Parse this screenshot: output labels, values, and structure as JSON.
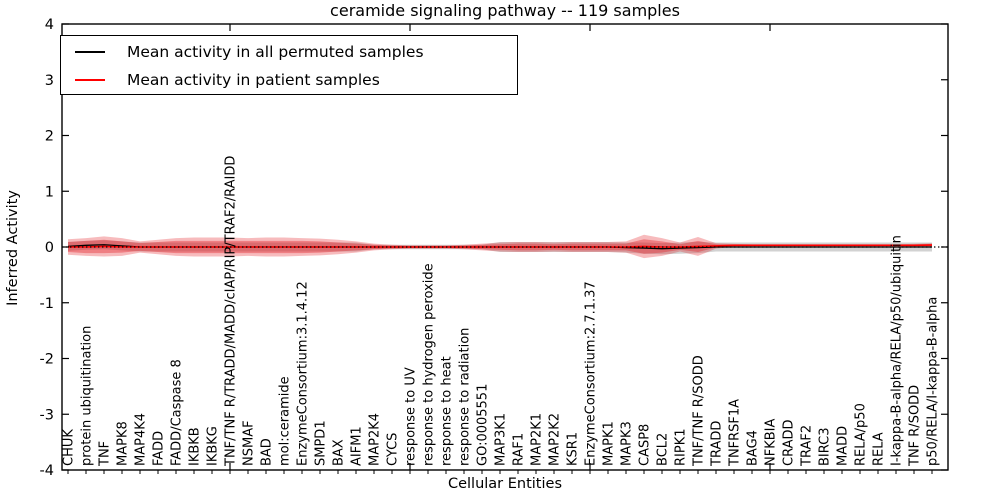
{
  "figure": {
    "title": "ceramide signaling pathway -- 119 samples",
    "xlabel": "Cellular Entities",
    "ylabel": "Inferred Activity"
  },
  "legend": {
    "entries": [
      {
        "label": "Mean activity in all permuted samples",
        "color": "#000000"
      },
      {
        "label": "Mean activity in patient samples",
        "color": "#ff0000"
      }
    ],
    "position": "upper left"
  },
  "chart_data": {
    "type": "line",
    "title": "ceramide signaling pathway -- 119 samples",
    "xlabel": "Cellular Entities",
    "ylabel": "Inferred Activity",
    "ylim": [
      -4,
      4
    ],
    "yticks": [
      4,
      3,
      2,
      1,
      0,
      -1,
      -2,
      -3,
      -4
    ],
    "x_major_tick_indices": [
      9,
      19,
      29,
      39
    ],
    "grid": false,
    "legend_position": "upper left",
    "zero_line": 0,
    "categories": [
      "CHUK",
      "protein ubiquitination",
      "TNF",
      "MAPK8",
      "MAP4K4",
      "FADD",
      "FADD/Caspase 8",
      "IKBKB",
      "IKBKG",
      "TNF/TNF R/TRADD/MADD/cIAP/RIP/TRAF2/RAIDD",
      "NSMAF",
      "BAD",
      "mol:ceramide",
      "EnzymeConsortium:3.1.4.12",
      "SMPD1",
      "BAX",
      "AIFM1",
      "MAP2K4",
      "CYCS",
      "response to UV",
      "response to hydrogen peroxide",
      "response to heat",
      "response to radiation",
      "GO:0005551",
      "MAP3K1",
      "RAF1",
      "MAP2K1",
      "MAP2K2",
      "KSR1",
      "EnzymeConsortium:2.7.1.37",
      "MAPK1",
      "MAPK3",
      "CASP8",
      "BCL2",
      "RIPK1",
      "TNF/TNF R/SODD",
      "TRADD",
      "TNFRSF1A",
      "BAG4",
      "NFKBIA",
      "CRADD",
      "TRAF2",
      "BIRC3",
      "MADD",
      "RELA/p50",
      "RELA",
      "I-kappa-B-alpha/RELA/p50/ubiquitin",
      "TNF R/SODD",
      "p50/RELA/I-kappa-B-alpha"
    ],
    "series": [
      {
        "name": "Mean activity in all permuted samples",
        "color": "#000000",
        "width": 1.3,
        "values": [
          0.01,
          0.03,
          0.04,
          0.02,
          0,
          0,
          0,
          0,
          0,
          0,
          0,
          0,
          0,
          0,
          0,
          0,
          0,
          0,
          0,
          0,
          0,
          0,
          0,
          0,
          0,
          0,
          0,
          0,
          0,
          0,
          0,
          -0.01,
          -0.02,
          -0.03,
          -0.02,
          -0.01,
          0,
          0,
          0,
          0,
          0,
          0,
          0,
          0,
          0,
          0,
          0,
          0,
          0
        ]
      },
      {
        "name": "Mean activity in patient samples",
        "color": "#ff0000",
        "width": 1.6,
        "values": [
          0,
          0,
          0.01,
          0,
          0,
          0,
          0,
          0,
          0,
          0,
          0,
          0,
          0,
          0,
          0,
          0,
          0,
          0,
          0,
          0,
          0,
          0,
          0,
          0,
          0,
          0,
          0,
          0,
          0,
          0,
          0,
          0,
          0.01,
          0,
          0,
          0.01,
          0.02,
          0.03,
          0.03,
          0.03,
          0.03,
          0.03,
          0.03,
          0.03,
          0.03,
          0.03,
          0.03,
          0.03,
          0.035
        ]
      }
    ],
    "bands": [
      {
        "name": "permuted-range-band",
        "color": "rgba(125,125,125,0.35)",
        "center_series": 0,
        "half_widths": [
          0.08,
          0.08,
          0.08,
          0.08,
          0.08,
          0.08,
          0.08,
          0.08,
          0.08,
          0.08,
          0.08,
          0.08,
          0.08,
          0.08,
          0.08,
          0.08,
          0.08,
          0.04,
          0.04,
          0.04,
          0.04,
          0.04,
          0.04,
          0.04,
          0.09,
          0.09,
          0.09,
          0.09,
          0.09,
          0.09,
          0.09,
          0.09,
          0.1,
          0.1,
          0.1,
          0.1,
          0.08,
          0.08,
          0.08,
          0.08,
          0.08,
          0.08,
          0.08,
          0.08,
          0.08,
          0.08,
          0.08,
          0.08,
          0.08
        ]
      },
      {
        "name": "patient-outer-band",
        "color": "rgba(227,30,36,0.30)",
        "center_series": 1,
        "half_widths": [
          0.14,
          0.16,
          0.18,
          0.16,
          0.1,
          0.13,
          0.16,
          0.17,
          0.17,
          0.17,
          0.16,
          0.17,
          0.17,
          0.16,
          0.15,
          0.13,
          0.1,
          0.06,
          0.04,
          0.03,
          0.03,
          0.03,
          0.04,
          0.06,
          0.08,
          0.09,
          0.09,
          0.08,
          0.09,
          0.09,
          0.09,
          0.1,
          0.21,
          0.16,
          0.08,
          0.17,
          0.05,
          0.025,
          0.02,
          0.02,
          0.02,
          0.02,
          0.02,
          0.02,
          0.02,
          0.02,
          0.02,
          0.025,
          0.03
        ]
      },
      {
        "name": "patient-inner-band",
        "color": "rgba(227,30,36,0.38)",
        "center_series": 1,
        "half_widths": [
          0.09,
          0.11,
          0.12,
          0.1,
          0.07,
          0.09,
          0.11,
          0.11,
          0.11,
          0.11,
          0.11,
          0.11,
          0.11,
          0.11,
          0.1,
          0.08,
          0.06,
          0.04,
          0.025,
          0.02,
          0.02,
          0.02,
          0.025,
          0.04,
          0.05,
          0.06,
          0.06,
          0.05,
          0.06,
          0.06,
          0.06,
          0.06,
          0.13,
          0.1,
          0.05,
          0.1,
          0.03,
          0.015,
          0.012,
          0.012,
          0.012,
          0.012,
          0.012,
          0.012,
          0.012,
          0.012,
          0.012,
          0.015,
          0.02
        ]
      }
    ]
  }
}
